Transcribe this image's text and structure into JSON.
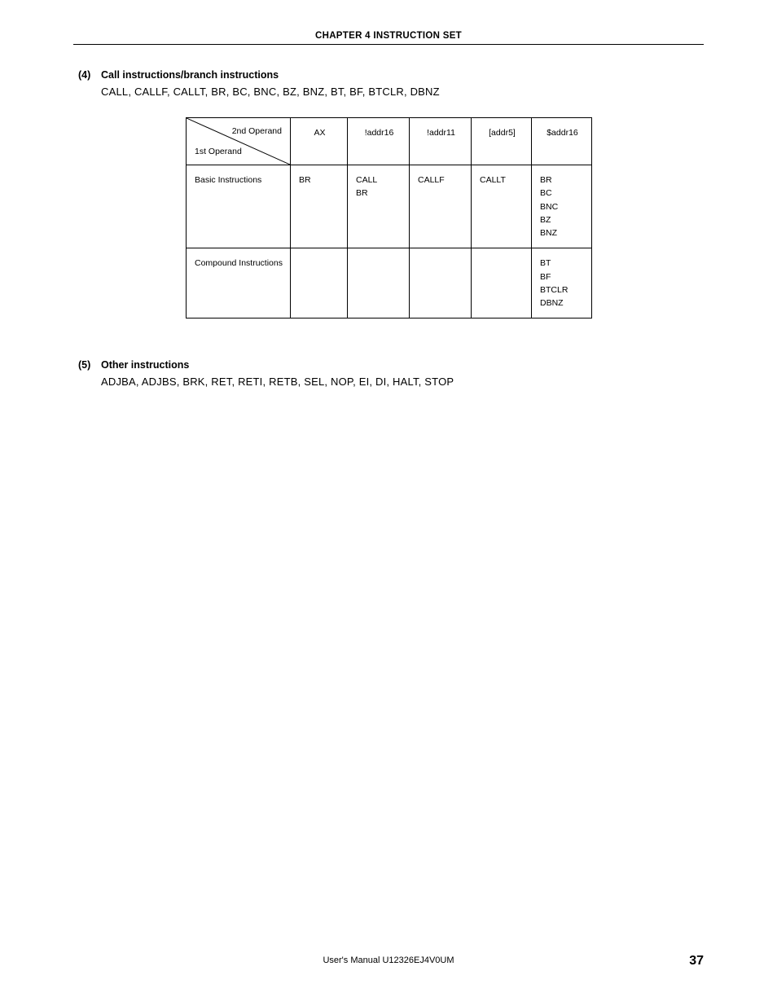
{
  "header": {
    "chapter_title": "CHAPTER 4  INSTRUCTION SET"
  },
  "section4": {
    "num": "(4)",
    "title": "Call instructions/branch instructions",
    "body": "CALL, CALLF, CALLT, BR, BC, BNC, BZ, BNZ, BT, BF, BTCLR, DBNZ"
  },
  "table": {
    "diag_top": "2nd Operand",
    "diag_bottom": "1st Operand",
    "headers": [
      "AX",
      "!addr16",
      "!addr11",
      "[addr5]",
      "$addr16"
    ],
    "rows": [
      {
        "label": "Basic Instructions",
        "cells": [
          "BR",
          "CALL\nBR",
          "CALLF",
          "CALLT",
          "BR\nBC\nBNC\nBZ\nBNZ"
        ]
      },
      {
        "label": "Compound Instructions",
        "cells": [
          "",
          "",
          "",
          "",
          "BT\nBF\nBTCLR\nDBNZ"
        ]
      }
    ]
  },
  "section5": {
    "num": "(5)",
    "title": "Other instructions",
    "body": "ADJBA, ADJBS, BRK, RET, RETI, RETB, SEL, NOP, EI, DI, HALT, STOP"
  },
  "footer": {
    "center": "User's Manual  U12326EJ4V0UM",
    "page_num": "37"
  }
}
